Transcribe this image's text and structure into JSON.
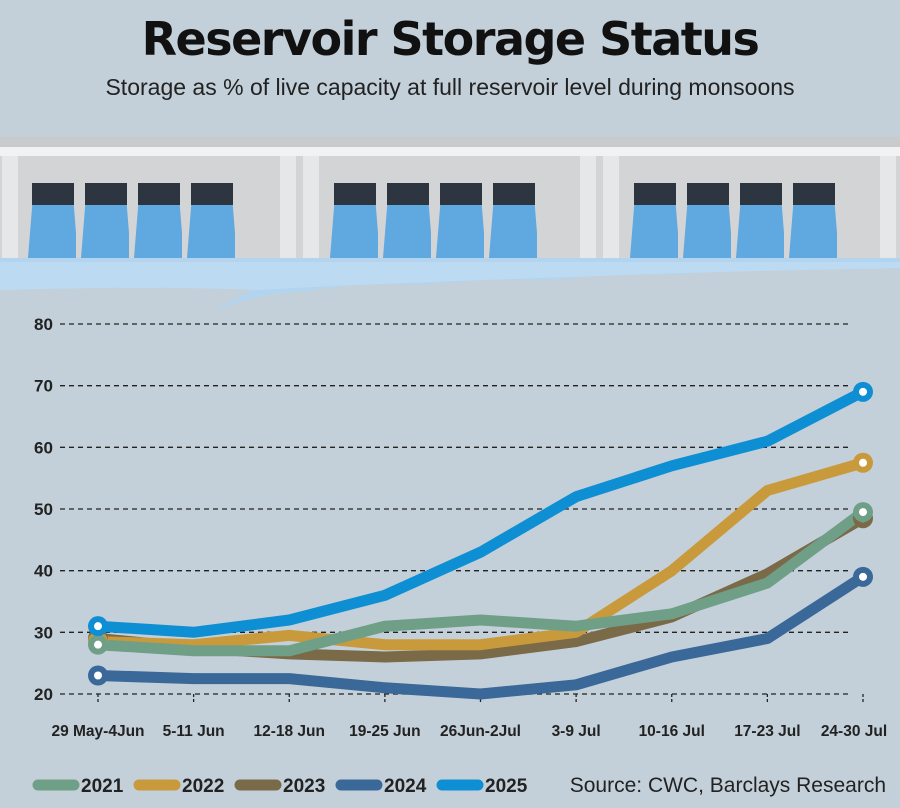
{
  "title": "Reservoir Storage Status",
  "subtitle": "Storage as % of live capacity at full reservoir level during monsoons",
  "source": "Source: CWC, Barclays Research",
  "chart_data": {
    "type": "line",
    "categories": [
      "29 May-4Jun",
      "5-11 Jun",
      "12-18 Jun",
      "19-25 Jun",
      "26Jun-2Jul",
      "3-9 Jul",
      "10-16 Jul",
      "17-23 Jul",
      "24-30 Jul"
    ],
    "ylim": [
      20,
      80
    ],
    "yticks": [
      20,
      30,
      40,
      50,
      60,
      70,
      80
    ],
    "grid": true,
    "legend_position": "bottom-left",
    "series": [
      {
        "name": "2023",
        "color": "#7a6a48",
        "values": [
          29,
          27.5,
          26.5,
          26,
          26.5,
          28.5,
          32.5,
          39.5,
          48.5
        ]
      },
      {
        "name": "2022",
        "color": "#c89a3c",
        "values": [
          28.5,
          28,
          29.5,
          28,
          28,
          30,
          40,
          53,
          57.5
        ]
      },
      {
        "name": "2021",
        "color": "#6f9f87",
        "values": [
          28,
          27,
          27,
          31,
          32,
          31,
          33,
          38,
          49.5
        ]
      },
      {
        "name": "2024",
        "color": "#3a6898",
        "values": [
          23,
          22.5,
          22.5,
          21,
          20,
          21.5,
          26,
          29,
          39
        ]
      },
      {
        "name": "2025",
        "color": "#0f8fd3",
        "values": [
          31,
          30,
          32,
          36,
          43,
          52,
          57,
          61,
          69
        ]
      }
    ],
    "legend_order": [
      "2021",
      "2022",
      "2023",
      "2024",
      "2025"
    ]
  }
}
